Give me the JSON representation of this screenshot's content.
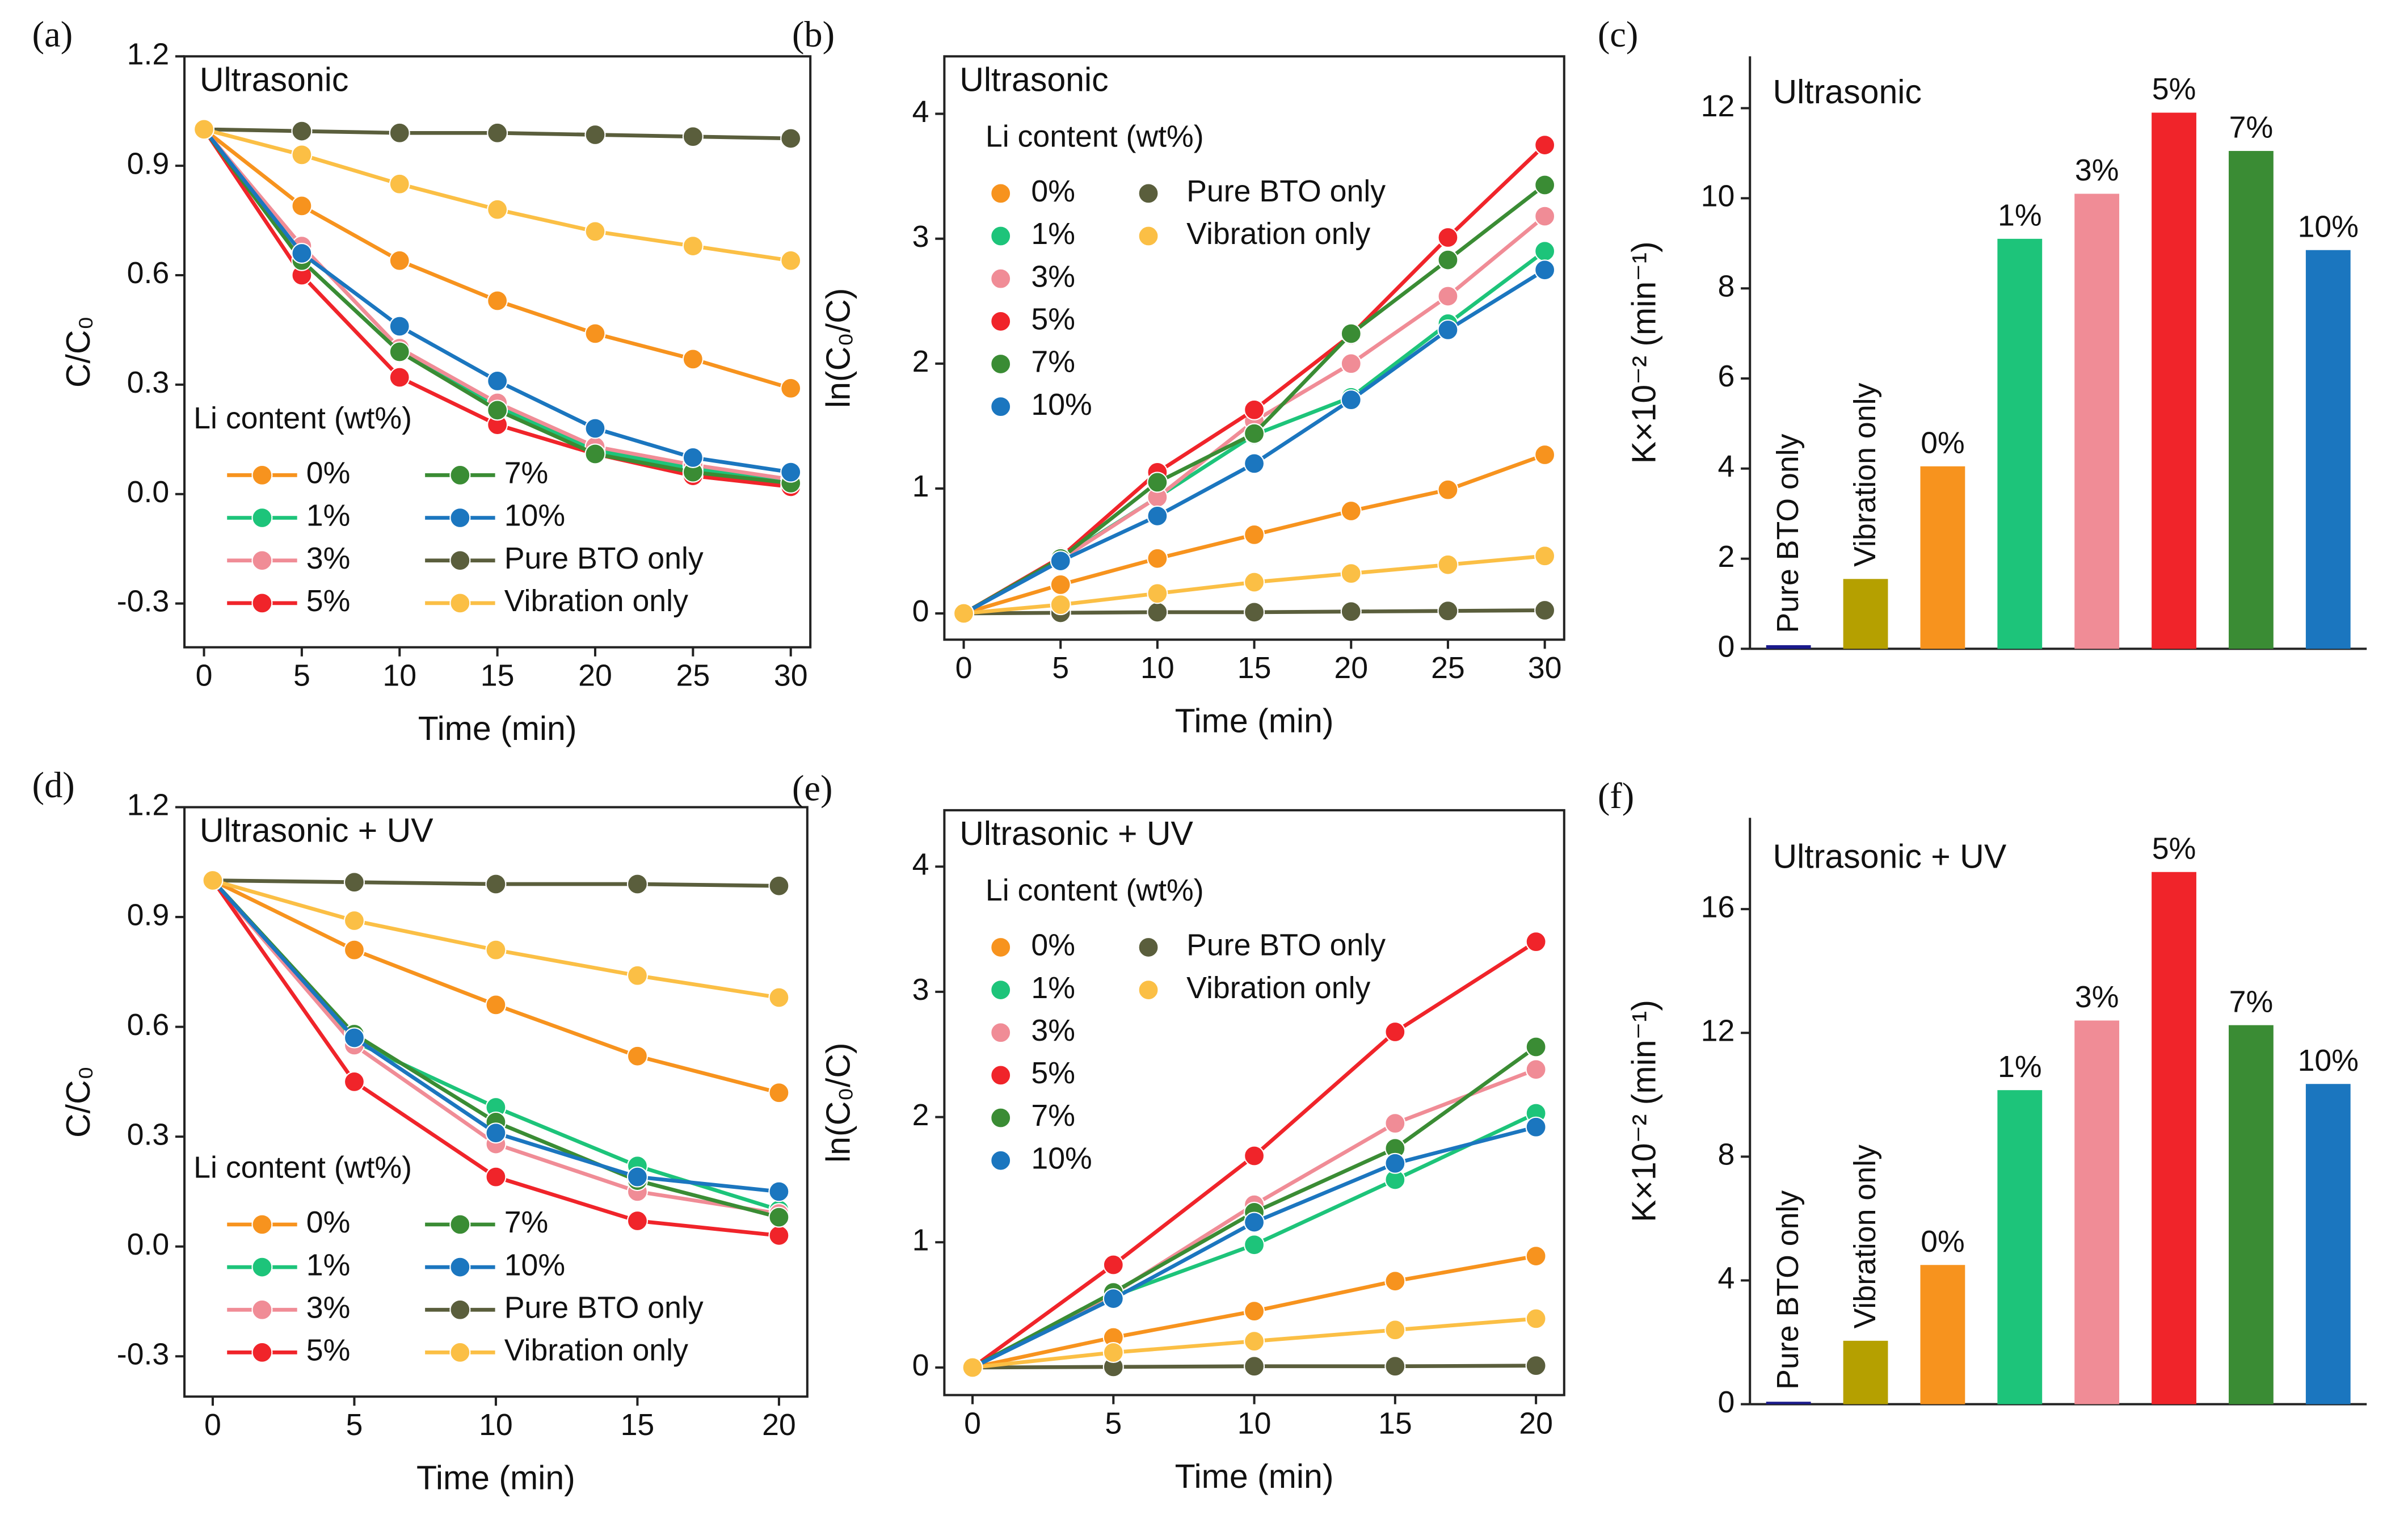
{
  "chart_data": [
    {
      "type": "line",
      "panel_label": "(a)",
      "title": "Ultrasonic",
      "x_label": "Time (min)",
      "y_label": "C/C₀",
      "legend_title": "Li content (wt%)",
      "legend": "lower left",
      "x": [
        0,
        5,
        10,
        15,
        20,
        25,
        30
      ],
      "xlim": [
        -1,
        31
      ],
      "xticks": [
        0,
        5,
        10,
        15,
        20,
        25,
        30
      ],
      "ylim": [
        -0.42,
        1.2
      ],
      "yticks": [
        -0.3,
        {
          "value": 0,
          "label": "0.0"
        },
        0.3,
        0.6,
        0.9,
        1.2
      ],
      "series": [
        {
          "name": "0%",
          "color": "#f7931e",
          "values": [
            1,
            0.79,
            0.64,
            0.53,
            0.44,
            0.37,
            0.29
          ]
        },
        {
          "name": "1%",
          "color": "#1dc47a",
          "values": [
            1,
            0.64,
            0.39,
            0.24,
            0.12,
            0.07,
            0.04
          ]
        },
        {
          "name": "3%",
          "color": "#f08c96",
          "values": [
            1,
            0.68,
            0.4,
            0.25,
            0.13,
            0.08,
            0.04
          ]
        },
        {
          "name": "5%",
          "color": "#f0242a",
          "values": [
            1,
            0.6,
            0.32,
            0.19,
            0.11,
            0.05,
            0.02
          ]
        },
        {
          "name": "7%",
          "color": "#3a8c34",
          "values": [
            1,
            0.64,
            0.39,
            0.23,
            0.11,
            0.06,
            0.03
          ]
        },
        {
          "name": "10%",
          "color": "#1b76bf",
          "values": [
            1,
            0.66,
            0.46,
            0.31,
            0.18,
            0.1,
            0.06
          ]
        },
        {
          "name": "Pure BTO only",
          "color": "#5a5e3c",
          "values": [
            1,
            0.995,
            0.99,
            0.99,
            0.985,
            0.98,
            0.975
          ]
        },
        {
          "name": "Vibration only",
          "color": "#fbbf45",
          "values": [
            1,
            0.93,
            0.85,
            0.78,
            0.72,
            0.68,
            0.64
          ]
        }
      ]
    },
    {
      "type": "line",
      "panel_label": "(b)",
      "title": "Ultrasonic",
      "x_label": "Time (min)",
      "y_label": "ln(C₀/C)",
      "legend_title": "Li content (wt%)",
      "legend": "upper left",
      "x": [
        0,
        5,
        10,
        15,
        20,
        25,
        30
      ],
      "xlim": [
        -1,
        31
      ],
      "xticks": [
        0,
        5,
        10,
        15,
        20,
        25,
        30
      ],
      "ylim": [
        -0.21,
        4.46
      ],
      "yticks": [
        0,
        1,
        2,
        3,
        4
      ],
      "series": [
        {
          "name": "0%",
          "color": "#f7931e",
          "values": [
            0,
            0.23,
            0.44,
            0.63,
            0.82,
            0.99,
            1.27
          ]
        },
        {
          "name": "1%",
          "color": "#1dc47a",
          "values": [
            0,
            0.44,
            0.93,
            1.43,
            1.73,
            2.32,
            2.9
          ]
        },
        {
          "name": "3%",
          "color": "#f08c96",
          "values": [
            0,
            0.43,
            0.93,
            1.54,
            2.0,
            2.54,
            3.18
          ]
        },
        {
          "name": "5%",
          "color": "#f0242a",
          "values": [
            0,
            0.45,
            1.13,
            1.63,
            2.23,
            3.01,
            3.75
          ]
        },
        {
          "name": "7%",
          "color": "#3a8c34",
          "values": [
            0,
            0.44,
            1.05,
            1.44,
            2.24,
            2.83,
            3.43
          ]
        },
        {
          "name": "10%",
          "color": "#1b76bf",
          "values": [
            0,
            0.42,
            0.78,
            1.2,
            1.71,
            2.27,
            2.75
          ]
        },
        {
          "name": "Pure BTO only",
          "color": "#5a5e3c",
          "values": [
            0,
            0.005,
            0.01,
            0.01,
            0.015,
            0.02,
            0.025
          ]
        },
        {
          "name": "Vibration only",
          "color": "#fbbf45",
          "values": [
            0,
            0.07,
            0.16,
            0.25,
            0.32,
            0.39,
            0.46
          ]
        }
      ]
    },
    {
      "type": "bar",
      "panel_label": "(c)",
      "title": "Ultrasonic",
      "y_label": "K×10⁻² (min⁻¹)",
      "categories": [
        "Pure BTO only",
        "Vibration only",
        "0%",
        "1%",
        "3%",
        "5%",
        "7%",
        "10%"
      ],
      "values": [
        0.08,
        1.55,
        4.05,
        9.1,
        10.1,
        11.9,
        11.05,
        8.85
      ],
      "colors": [
        "#1a1a8c",
        "#b5a000",
        "#f7931e",
        "#1dc47a",
        "#f08c96",
        "#f0242a",
        "#3a8c34",
        "#1b76bf"
      ],
      "ylim": [
        0,
        13.15
      ],
      "yticks": [
        0,
        2,
        4,
        6,
        8,
        10,
        12
      ]
    },
    {
      "type": "line",
      "panel_label": "(d)",
      "title": "Ultrasonic + UV",
      "x_label": "Time (min)",
      "y_label": "C/C₀",
      "legend_title": "Li content (wt%)",
      "legend": "lower left",
      "x": [
        0,
        5,
        10,
        15,
        20
      ],
      "xlim": [
        -1,
        21
      ],
      "xticks": [
        0,
        5,
        10,
        15,
        20
      ],
      "ylim": [
        -0.41,
        1.2
      ],
      "yticks": [
        -0.3,
        {
          "value": 0,
          "label": "0.0"
        },
        0.3,
        0.6,
        0.9,
        1.2
      ],
      "series": [
        {
          "name": "0%",
          "color": "#f7931e",
          "values": [
            1,
            0.81,
            0.66,
            0.52,
            0.42
          ]
        },
        {
          "name": "1%",
          "color": "#1dc47a",
          "values": [
            1,
            0.56,
            0.38,
            0.22,
            0.1
          ]
        },
        {
          "name": "3%",
          "color": "#f08c96",
          "values": [
            1,
            0.55,
            0.28,
            0.15,
            0.09
          ]
        },
        {
          "name": "5%",
          "color": "#f0242a",
          "values": [
            1,
            0.45,
            0.19,
            0.07,
            0.03
          ]
        },
        {
          "name": "7%",
          "color": "#3a8c34",
          "values": [
            1,
            0.58,
            0.34,
            0.18,
            0.08
          ]
        },
        {
          "name": "10%",
          "color": "#1b76bf",
          "values": [
            1,
            0.57,
            0.31,
            0.19,
            0.15
          ]
        },
        {
          "name": "Pure BTO only",
          "color": "#5a5e3c",
          "values": [
            1,
            0.995,
            0.99,
            0.99,
            0.985
          ]
        },
        {
          "name": "Vibration only",
          "color": "#fbbf45",
          "values": [
            1,
            0.89,
            0.81,
            0.74,
            0.68
          ]
        }
      ]
    },
    {
      "type": "line",
      "panel_label": "(e)",
      "title": "Ultrasonic + UV",
      "x_label": "Time (min)",
      "y_label": "ln(C₀/C)",
      "legend_title": "Li content (wt%)",
      "legend": "upper left",
      "x": [
        0,
        5,
        10,
        15,
        20
      ],
      "xlim": [
        -1,
        21
      ],
      "xticks": [
        0,
        5,
        10,
        15,
        20
      ],
      "ylim": [
        -0.22,
        4.45
      ],
      "yticks": [
        0,
        1,
        2,
        3,
        4
      ],
      "series": [
        {
          "name": "0%",
          "color": "#f7931e",
          "values": [
            0,
            0.24,
            0.45,
            0.69,
            0.89
          ]
        },
        {
          "name": "1%",
          "color": "#1dc47a",
          "values": [
            0,
            0.57,
            0.98,
            1.5,
            2.03
          ]
        },
        {
          "name": "3%",
          "color": "#f08c96",
          "values": [
            0,
            0.59,
            1.3,
            1.95,
            2.38
          ]
        },
        {
          "name": "5%",
          "color": "#f0242a",
          "values": [
            0,
            0.82,
            1.69,
            2.68,
            3.4
          ]
        },
        {
          "name": "7%",
          "color": "#3a8c34",
          "values": [
            0,
            0.6,
            1.24,
            1.75,
            2.56
          ]
        },
        {
          "name": "10%",
          "color": "#1b76bf",
          "values": [
            0,
            0.55,
            1.16,
            1.63,
            1.92
          ]
        },
        {
          "name": "Pure BTO only",
          "color": "#5a5e3c",
          "values": [
            0,
            0.005,
            0.01,
            0.01,
            0.015
          ]
        },
        {
          "name": "Vibration only",
          "color": "#fbbf45",
          "values": [
            0,
            0.12,
            0.21,
            0.3,
            0.39
          ]
        }
      ]
    },
    {
      "type": "bar",
      "panel_label": "(f)",
      "title": "Ultrasonic + UV",
      "y_label": "K×10⁻² (min⁻¹)",
      "categories": [
        "Pure BTO only",
        "Vibration only",
        "0%",
        "1%",
        "3%",
        "5%",
        "7%",
        "10%"
      ],
      "values": [
        0.08,
        2.05,
        4.5,
        10.15,
        12.4,
        17.2,
        12.25,
        10.35
      ],
      "colors": [
        "#1a1a8c",
        "#b5a000",
        "#f7931e",
        "#1dc47a",
        "#f08c96",
        "#f0242a",
        "#3a8c34",
        "#1b76bf"
      ],
      "ylim": [
        0,
        18.95
      ],
      "yticks": [
        0,
        4,
        8,
        12,
        16
      ]
    }
  ]
}
